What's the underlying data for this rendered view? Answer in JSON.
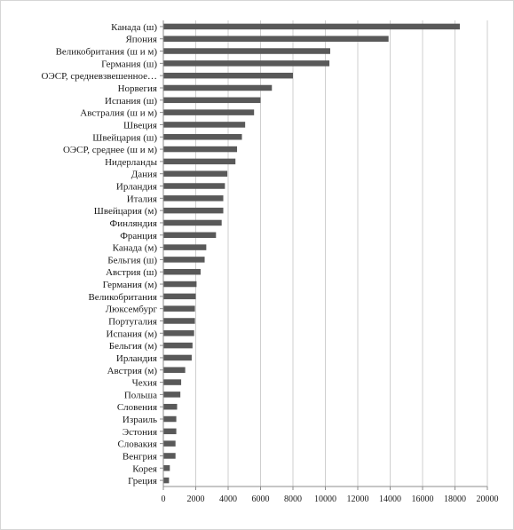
{
  "chart_data": {
    "type": "bar",
    "orientation": "horizontal",
    "title": "",
    "xlabel": "",
    "ylabel": "",
    "xlim": [
      0,
      20000
    ],
    "xticks": [
      0,
      2000,
      4000,
      6000,
      8000,
      10000,
      12000,
      14000,
      16000,
      18000,
      20000
    ],
    "grid": true,
    "bar_color": "#595959",
    "categories": [
      "Канада (ш)",
      "Япония",
      "Великобритания (ш и м)",
      "Германия (ш)",
      "ОЭСР, средневзвешенное…",
      "Норвегия",
      "Испания (ш)",
      "Австралия (ш и м)",
      "Швеция",
      "Швейцария (ш)",
      "ОЭСР, среднее (ш и м)",
      "Нидерланды",
      "Дания",
      "Ирландия",
      "Италия",
      "Швейцария (м)",
      "Финляндия",
      "Франция",
      "Канада (м)",
      "Бельгия (ш)",
      "Австрия (ш)",
      "Германия (м)",
      "Великобритания",
      "Люксембург",
      "Португалия",
      "Испания (м)",
      "Бельгия (м)",
      "Ирландия",
      "Австрия (м)",
      "Чехия",
      "Польша",
      "Словения",
      "Израиль",
      "Эстония",
      "Словакия",
      "Венгрия",
      "Корея",
      "Греция"
    ],
    "values": [
      18300,
      13900,
      10300,
      10250,
      8000,
      6700,
      6000,
      5600,
      5050,
      4850,
      4550,
      4450,
      3950,
      3800,
      3700,
      3700,
      3600,
      3250,
      2650,
      2550,
      2300,
      2050,
      2000,
      1950,
      1950,
      1900,
      1800,
      1750,
      1350,
      1100,
      1050,
      850,
      800,
      800,
      750,
      750,
      400,
      350
    ]
  }
}
